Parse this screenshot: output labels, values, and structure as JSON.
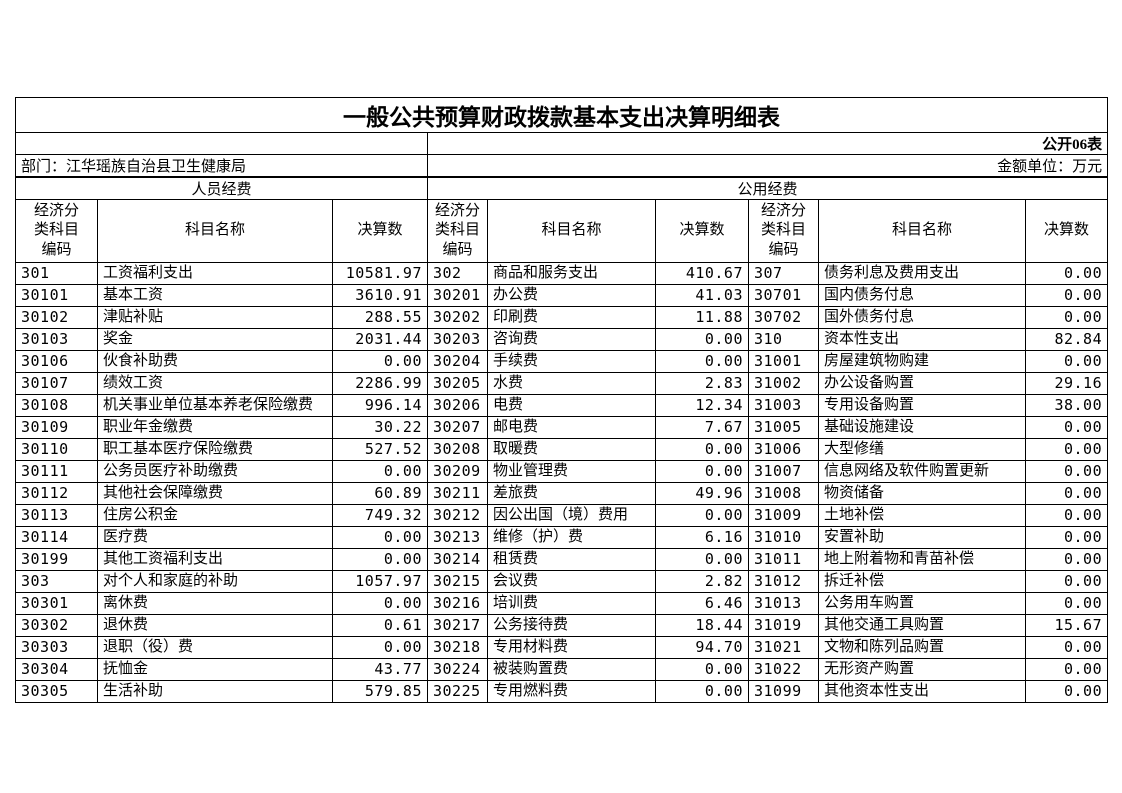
{
  "title": "一般公共预算财政拨款基本支出决算明细表",
  "meta": {
    "doc_label": "公开06表",
    "department": "部门：江华瑶族自治县卫生健康局",
    "unit": "金额单位：万元"
  },
  "sections": {
    "personnel": "人员经费",
    "public": "公用经费"
  },
  "column_headers": {
    "code": "经济分\n类科目\n编码",
    "name": "科目名称",
    "amount": "决算数"
  },
  "rows": [
    {
      "g1": [
        "301",
        "工资福利支出",
        "10581.97"
      ],
      "g2": [
        "302",
        "商品和服务支出",
        "410.67"
      ],
      "g3": [
        "307",
        "债务利息及费用支出",
        "0.00"
      ]
    },
    {
      "g1": [
        "30101",
        "基本工资",
        "3610.91"
      ],
      "g2": [
        "30201",
        "办公费",
        "41.03"
      ],
      "g3": [
        "30701",
        "国内债务付息",
        "0.00"
      ]
    },
    {
      "g1": [
        "30102",
        "津贴补贴",
        "288.55"
      ],
      "g2": [
        "30202",
        "印刷费",
        "11.88"
      ],
      "g3": [
        "30702",
        "国外债务付息",
        "0.00"
      ]
    },
    {
      "g1": [
        "30103",
        "奖金",
        "2031.44"
      ],
      "g2": [
        "30203",
        "咨询费",
        "0.00"
      ],
      "g3": [
        "310",
        "资本性支出",
        "82.84"
      ]
    },
    {
      "g1": [
        "30106",
        "伙食补助费",
        "0.00"
      ],
      "g2": [
        "30204",
        "手续费",
        "0.00"
      ],
      "g3": [
        "31001",
        "房屋建筑物购建",
        "0.00"
      ]
    },
    {
      "g1": [
        "30107",
        "绩效工资",
        "2286.99"
      ],
      "g2": [
        "30205",
        "水费",
        "2.83"
      ],
      "g3": [
        "31002",
        "办公设备购置",
        "29.16"
      ]
    },
    {
      "g1": [
        "30108",
        "机关事业单位基本养老保险缴费",
        "996.14"
      ],
      "g2": [
        "30206",
        "电费",
        "12.34"
      ],
      "g3": [
        "31003",
        "专用设备购置",
        "38.00"
      ]
    },
    {
      "g1": [
        "30109",
        "职业年金缴费",
        "30.22"
      ],
      "g2": [
        "30207",
        "邮电费",
        "7.67"
      ],
      "g3": [
        "31005",
        "基础设施建设",
        "0.00"
      ]
    },
    {
      "g1": [
        "30110",
        "职工基本医疗保险缴费",
        "527.52"
      ],
      "g2": [
        "30208",
        "取暖费",
        "0.00"
      ],
      "g3": [
        "31006",
        "大型修缮",
        "0.00"
      ]
    },
    {
      "g1": [
        "30111",
        "公务员医疗补助缴费",
        "0.00"
      ],
      "g2": [
        "30209",
        "物业管理费",
        "0.00"
      ],
      "g3": [
        "31007",
        "信息网络及软件购置更新",
        "0.00"
      ]
    },
    {
      "g1": [
        "30112",
        "其他社会保障缴费",
        "60.89"
      ],
      "g2": [
        "30211",
        "差旅费",
        "49.96"
      ],
      "g3": [
        "31008",
        "物资储备",
        "0.00"
      ]
    },
    {
      "g1": [
        "30113",
        "住房公积金",
        "749.32"
      ],
      "g2": [
        "30212",
        "因公出国（境）费用",
        "0.00"
      ],
      "g3": [
        "31009",
        "土地补偿",
        "0.00"
      ]
    },
    {
      "g1": [
        "30114",
        "医疗费",
        "0.00"
      ],
      "g2": [
        "30213",
        "维修（护）费",
        "6.16"
      ],
      "g3": [
        "31010",
        "安置补助",
        "0.00"
      ]
    },
    {
      "g1": [
        "30199",
        "其他工资福利支出",
        "0.00"
      ],
      "g2": [
        "30214",
        "租赁费",
        "0.00"
      ],
      "g3": [
        "31011",
        "地上附着物和青苗补偿",
        "0.00"
      ]
    },
    {
      "g1": [
        "303",
        "对个人和家庭的补助",
        "1057.97"
      ],
      "g2": [
        "30215",
        "会议费",
        "2.82"
      ],
      "g3": [
        "31012",
        "拆迁补偿",
        "0.00"
      ]
    },
    {
      "g1": [
        "30301",
        "离休费",
        "0.00"
      ],
      "g2": [
        "30216",
        "培训费",
        "6.46"
      ],
      "g3": [
        "31013",
        "公务用车购置",
        "0.00"
      ]
    },
    {
      "g1": [
        "30302",
        "退休费",
        "0.61"
      ],
      "g2": [
        "30217",
        "公务接待费",
        "18.44"
      ],
      "g3": [
        "31019",
        "其他交通工具购置",
        "15.67"
      ]
    },
    {
      "g1": [
        "30303",
        "退职（役）费",
        "0.00"
      ],
      "g2": [
        "30218",
        "专用材料费",
        "94.70"
      ],
      "g3": [
        "31021",
        "文物和陈列品购置",
        "0.00"
      ]
    },
    {
      "g1": [
        "30304",
        "抚恤金",
        "43.77"
      ],
      "g2": [
        "30224",
        "被装购置费",
        "0.00"
      ],
      "g3": [
        "31022",
        "无形资产购置",
        "0.00"
      ]
    },
    {
      "g1": [
        "30305",
        "生活补助",
        "579.85"
      ],
      "g2": [
        "30225",
        "专用燃料费",
        "0.00"
      ],
      "g3": [
        "31099",
        "其他资本性支出",
        "0.00"
      ]
    }
  ],
  "colors": {
    "border": "#000000",
    "text": "#000000",
    "page_background": "#ffffff"
  }
}
